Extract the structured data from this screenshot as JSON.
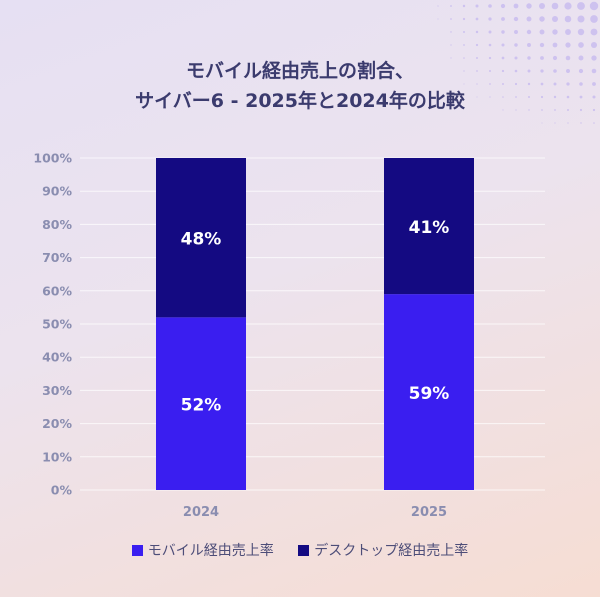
{
  "title_lines": [
    "モバイル経由売上の割合、",
    "サイバー6 - 2025年と2024年の比較"
  ],
  "colors": {
    "mobile": "#3a1ef0",
    "desktop": "#140a82",
    "title": "#3b3b6e",
    "axis_text": "#8a8db0",
    "grid": "#ffffff",
    "dots": "#b7a8ee"
  },
  "chart_data": {
    "type": "bar",
    "stacked": true,
    "title": "モバイル経由売上の割合、サイバー6 - 2025年と2024年の比較",
    "categories": [
      "2024",
      "2025"
    ],
    "series": [
      {
        "name": "モバイル経由売上率",
        "values": [
          52,
          59
        ],
        "labels": [
          "52%",
          "59%"
        ]
      },
      {
        "name": "デスクトップ経由売上率",
        "values": [
          48,
          41
        ],
        "labels": [
          "48%",
          "41%"
        ]
      }
    ],
    "ylim": [
      0,
      100
    ],
    "yticks": [
      "0%",
      "10%",
      "20%",
      "30%",
      "40%",
      "50%",
      "60%",
      "70%",
      "80%",
      "90%",
      "100%"
    ],
    "grid": true,
    "legend": "bottom"
  }
}
